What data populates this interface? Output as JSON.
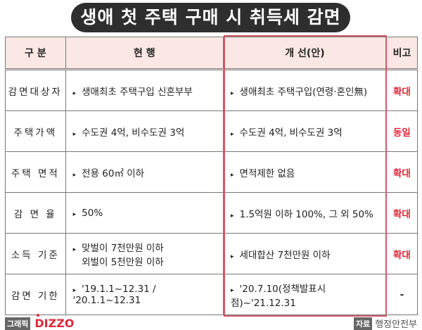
{
  "title": "생애 첫 주택 구매 시 취득세 감면",
  "headers": [
    "구  분",
    "현    행",
    "개  선(안)",
    "비고"
  ],
  "rows": [
    {
      "category": "감면대상자",
      "current": [
        "생애최초 주택구입 신혼부부"
      ],
      "proposed": "생애최초 주택구입(연령·혼인無)",
      "note": "확대"
    },
    {
      "category": "주택가액",
      "current": [
        "수도권 4억, 비수도권 3억"
      ],
      "proposed": "수도권 4억, 비수도권 3억",
      "note": "동일"
    },
    {
      "category": "주택 면적",
      "current": [
        "전용 60㎡ 이하"
      ],
      "proposed": "면적제한 없음",
      "note": "확대"
    },
    {
      "category": "감 면 율",
      "current": [
        "50%"
      ],
      "proposed": "1.5억원 이하 100%, 그 외 50%",
      "note": "확대"
    },
    {
      "category": "소득 기준",
      "current": [
        "맞벌이 7천만원 이하",
        "외벌이 5천만원 이하"
      ],
      "proposed": "세대합산 7천만원 이하",
      "note": "확대"
    },
    {
      "category": "감면 기한",
      "current": [
        "'19.1.1~12.31 / '20.1.1~12.31"
      ],
      "proposed": "'20.7.10(정책발표시점)~'21.12.31",
      "note": "-"
    }
  ],
  "footer": {
    "graphic_tag": "그래픽",
    "logo": "DIZZO",
    "source_tag": "자료",
    "source": "행정안전부"
  },
  "colors": {
    "accent": "#e0283a",
    "header_bg": "#fbe8e4",
    "highlight_border": "#cf5a64"
  }
}
